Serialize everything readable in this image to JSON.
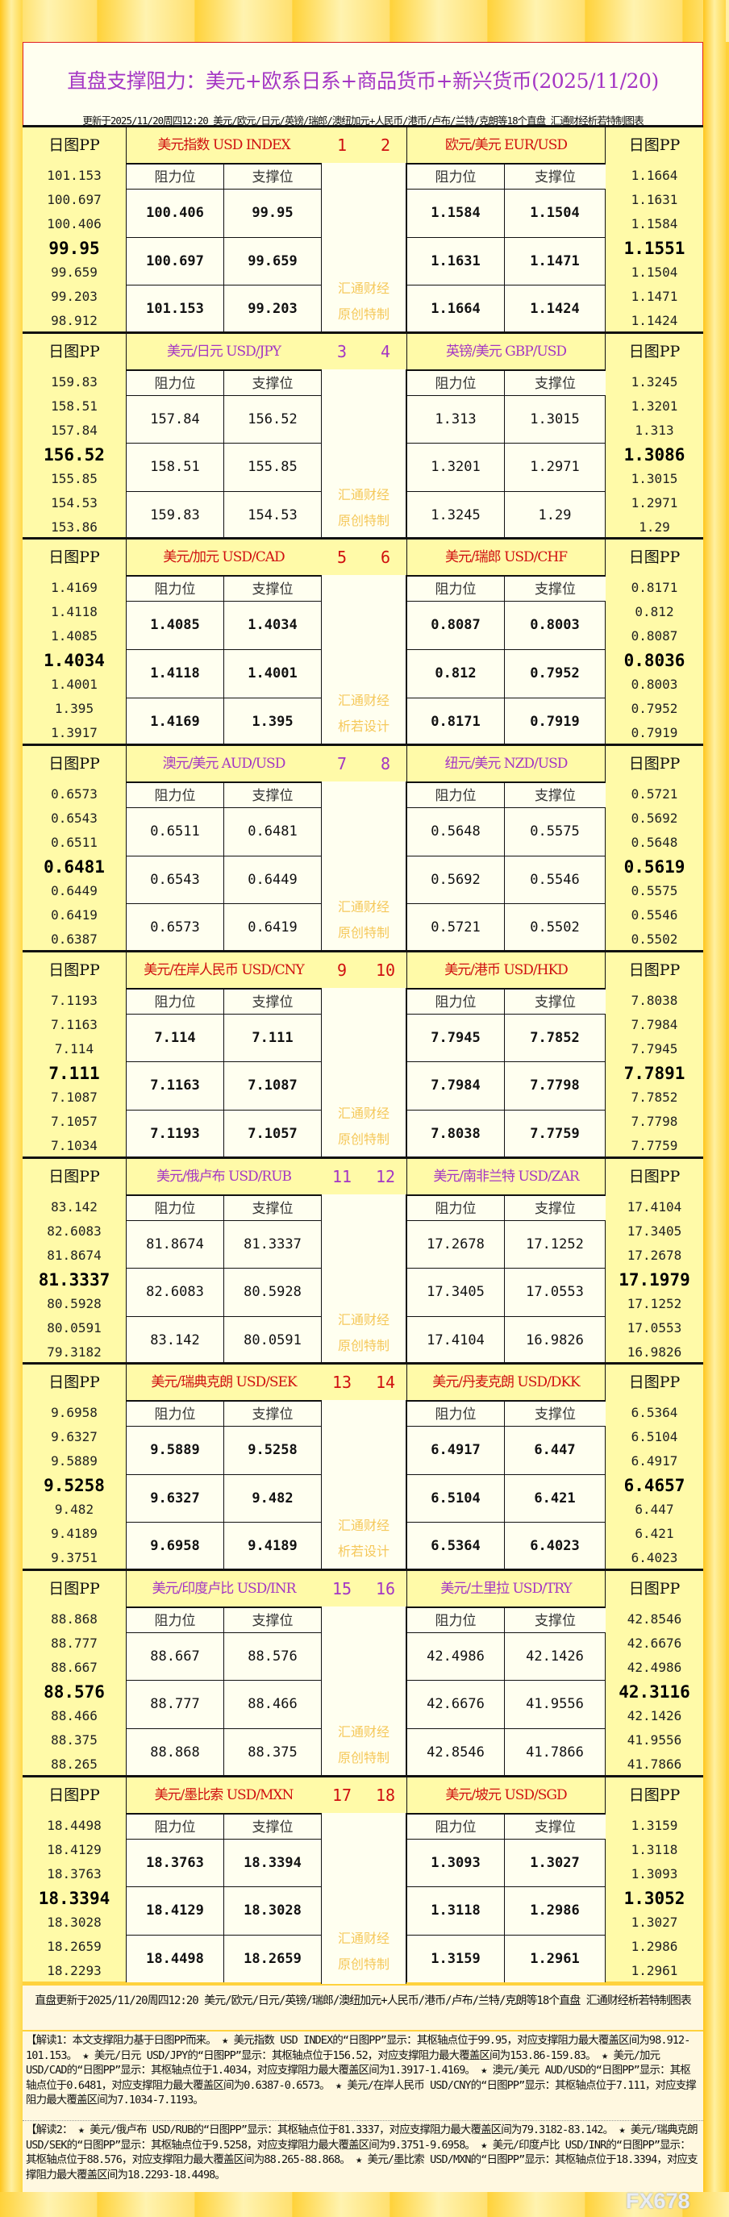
{
  "header": {
    "title": "直盘支撑阻力：美元+欧系日系+商品货币+新兴货币(2025/11/20)",
    "subtitle": "更新于2025/11/20周四12:20 美元/欧元/日元/英镑/瑞郎/澳纽加元+人民币/港币/卢布/兰特/克朗等18个直盘 汇通财经析若特制图表"
  },
  "labels": {
    "pp": "日图PP",
    "resistance": "阻力位",
    "support": "支撑位"
  },
  "colors": {
    "purple": "#a436c4",
    "red": "#d01010",
    "frame": "#ffd23c",
    "pp_bg": "#fffaa8"
  },
  "blocks": [
    {
      "nums": [
        "1",
        "2"
      ],
      "color": "red",
      "wm": [
        "汇通财经",
        "原创特制"
      ],
      "left": {
        "name": "美元指数 USD INDEX",
        "pp": [
          "101.153",
          "100.697",
          "100.406",
          "99.95",
          "99.659",
          "99.203",
          "98.912"
        ],
        "rows": [
          [
            "100.406",
            "99.95"
          ],
          [
            "100.697",
            "99.659"
          ],
          [
            "101.153",
            "99.203"
          ]
        ]
      },
      "right": {
        "name": "欧元/美元 EUR/USD",
        "pp": [
          "1.1664",
          "1.1631",
          "1.1584",
          "1.1551",
          "1.1504",
          "1.1471",
          "1.1424"
        ],
        "rows": [
          [
            "1.1584",
            "1.1504"
          ],
          [
            "1.1631",
            "1.1471"
          ],
          [
            "1.1664",
            "1.1424"
          ]
        ]
      }
    },
    {
      "nums": [
        "3",
        "4"
      ],
      "color": "purple",
      "wm": [
        "汇通财经",
        "原创特制"
      ],
      "left": {
        "name": "美元/日元 USD/JPY",
        "pp": [
          "159.83",
          "158.51",
          "157.84",
          "156.52",
          "155.85",
          "154.53",
          "153.86"
        ],
        "rows": [
          [
            "157.84",
            "156.52"
          ],
          [
            "158.51",
            "155.85"
          ],
          [
            "159.83",
            "154.53"
          ]
        ]
      },
      "right": {
        "name": "英镑/美元 GBP/USD",
        "pp": [
          "1.3245",
          "1.3201",
          "1.313",
          "1.3086",
          "1.3015",
          "1.2971",
          "1.29"
        ],
        "rows": [
          [
            "1.313",
            "1.3015"
          ],
          [
            "1.3201",
            "1.2971"
          ],
          [
            "1.3245",
            "1.29"
          ]
        ]
      }
    },
    {
      "nums": [
        "5",
        "6"
      ],
      "color": "red",
      "wm": [
        "汇通财经",
        "析若设计"
      ],
      "left": {
        "name": "美元/加元 USD/CAD",
        "pp": [
          "1.4169",
          "1.4118",
          "1.4085",
          "1.4034",
          "1.4001",
          "1.395",
          "1.3917"
        ],
        "rows": [
          [
            "1.4085",
            "1.4034"
          ],
          [
            "1.4118",
            "1.4001"
          ],
          [
            "1.4169",
            "1.395"
          ]
        ]
      },
      "right": {
        "name": "美元/瑞郎 USD/CHF",
        "pp": [
          "0.8171",
          "0.812",
          "0.8087",
          "0.8036",
          "0.8003",
          "0.7952",
          "0.7919"
        ],
        "rows": [
          [
            "0.8087",
            "0.8003"
          ],
          [
            "0.812",
            "0.7952"
          ],
          [
            "0.8171",
            "0.7919"
          ]
        ]
      }
    },
    {
      "nums": [
        "7",
        "8"
      ],
      "color": "purple",
      "wm": [
        "汇通财经",
        "原创特制"
      ],
      "left": {
        "name": "澳元/美元 AUD/USD",
        "pp": [
          "0.6573",
          "0.6543",
          "0.6511",
          "0.6481",
          "0.6449",
          "0.6419",
          "0.6387"
        ],
        "rows": [
          [
            "0.6511",
            "0.6481"
          ],
          [
            "0.6543",
            "0.6449"
          ],
          [
            "0.6573",
            "0.6419"
          ]
        ]
      },
      "right": {
        "name": "纽元/美元 NZD/USD",
        "pp": [
          "0.5721",
          "0.5692",
          "0.5648",
          "0.5619",
          "0.5575",
          "0.5546",
          "0.5502"
        ],
        "rows": [
          [
            "0.5648",
            "0.5575"
          ],
          [
            "0.5692",
            "0.5546"
          ],
          [
            "0.5721",
            "0.5502"
          ]
        ]
      }
    },
    {
      "nums": [
        "9",
        "10"
      ],
      "color": "red",
      "wm": [
        "汇通财经",
        "原创特制"
      ],
      "left": {
        "name": "美元/在岸人民币 USD/CNY",
        "pp": [
          "7.1193",
          "7.1163",
          "7.114",
          "7.111",
          "7.1087",
          "7.1057",
          "7.1034"
        ],
        "rows": [
          [
            "7.114",
            "7.111"
          ],
          [
            "7.1163",
            "7.1087"
          ],
          [
            "7.1193",
            "7.1057"
          ]
        ]
      },
      "right": {
        "name": "美元/港币 USD/HKD",
        "pp": [
          "7.8038",
          "7.7984",
          "7.7945",
          "7.7891",
          "7.7852",
          "7.7798",
          "7.7759"
        ],
        "rows": [
          [
            "7.7945",
            "7.7852"
          ],
          [
            "7.7984",
            "7.7798"
          ],
          [
            "7.8038",
            "7.7759"
          ]
        ]
      }
    },
    {
      "nums": [
        "11",
        "12"
      ],
      "color": "purple",
      "wm": [
        "汇通财经",
        "原创特制"
      ],
      "left": {
        "name": "美元/俄卢布 USD/RUB",
        "pp": [
          "83.142",
          "82.6083",
          "81.8674",
          "81.3337",
          "80.5928",
          "80.0591",
          "79.3182"
        ],
        "rows": [
          [
            "81.8674",
            "81.3337"
          ],
          [
            "82.6083",
            "80.5928"
          ],
          [
            "83.142",
            "80.0591"
          ]
        ]
      },
      "right": {
        "name": "美元/南非兰特 USD/ZAR",
        "pp": [
          "17.4104",
          "17.3405",
          "17.2678",
          "17.1979",
          "17.1252",
          "17.0553",
          "16.9826"
        ],
        "rows": [
          [
            "17.2678",
            "17.1252"
          ],
          [
            "17.3405",
            "17.0553"
          ],
          [
            "17.4104",
            "16.9826"
          ]
        ]
      }
    },
    {
      "nums": [
        "13",
        "14"
      ],
      "color": "red",
      "wm": [
        "汇通财经",
        "析若设计"
      ],
      "left": {
        "name": "美元/瑞典克朗 USD/SEK",
        "pp": [
          "9.6958",
          "9.6327",
          "9.5889",
          "9.5258",
          "9.482",
          "9.4189",
          "9.3751"
        ],
        "rows": [
          [
            "9.5889",
            "9.5258"
          ],
          [
            "9.6327",
            "9.482"
          ],
          [
            "9.6958",
            "9.4189"
          ]
        ]
      },
      "right": {
        "name": "美元/丹麦克朗 USD/DKK",
        "pp": [
          "6.5364",
          "6.5104",
          "6.4917",
          "6.4657",
          "6.447",
          "6.421",
          "6.4023"
        ],
        "rows": [
          [
            "6.4917",
            "6.447"
          ],
          [
            "6.5104",
            "6.421"
          ],
          [
            "6.5364",
            "6.4023"
          ]
        ]
      }
    },
    {
      "nums": [
        "15",
        "16"
      ],
      "color": "purple",
      "wm": [
        "汇通财经",
        "原创特制"
      ],
      "left": {
        "name": "美元/印度卢比 USD/INR",
        "pp": [
          "88.868",
          "88.777",
          "88.667",
          "88.576",
          "88.466",
          "88.375",
          "88.265"
        ],
        "rows": [
          [
            "88.667",
            "88.576"
          ],
          [
            "88.777",
            "88.466"
          ],
          [
            "88.868",
            "88.375"
          ]
        ]
      },
      "right": {
        "name": "美元/土里拉 USD/TRY",
        "pp": [
          "42.8546",
          "42.6676",
          "42.4986",
          "42.3116",
          "42.1426",
          "41.9556",
          "41.7866"
        ],
        "rows": [
          [
            "42.4986",
            "42.1426"
          ],
          [
            "42.6676",
            "41.9556"
          ],
          [
            "42.8546",
            "41.7866"
          ]
        ]
      }
    },
    {
      "nums": [
        "17",
        "18"
      ],
      "color": "red",
      "wm": [
        "汇通财经",
        "原创特制"
      ],
      "left": {
        "name": "美元/墨比索 USD/MXN",
        "pp": [
          "18.4498",
          "18.4129",
          "18.3763",
          "18.3394",
          "18.3028",
          "18.2659",
          "18.2293"
        ],
        "rows": [
          [
            "18.3763",
            "18.3394"
          ],
          [
            "18.4129",
            "18.3028"
          ],
          [
            "18.4498",
            "18.2659"
          ]
        ]
      },
      "right": {
        "name": "美元/坡元 USD/SGD",
        "pp": [
          "1.3159",
          "1.3118",
          "1.3093",
          "1.3052",
          "1.3027",
          "1.2986",
          "1.2961"
        ],
        "rows": [
          [
            "1.3093",
            "1.3027"
          ],
          [
            "1.3118",
            "1.2986"
          ],
          [
            "1.3159",
            "1.2961"
          ]
        ]
      }
    }
  ],
  "footer": {
    "update": "直盘更新于2025/11/20周四12:20 美元/欧元/日元/英镑/瑞郎/澳纽加元+人民币/港币/卢布/兰特/克朗等18个直盘 汇通财经析若特制图表",
    "interp1": "【解读1：本文支撑阻力基于日图PP而来。 ★ 美元指数 USD INDEX的“日图PP”显示：其枢轴点位于99.95，对应支撑阻力最大覆盖区间为98.912-101.153。 ★ 美元/日元 USD/JPY的“日图PP”显示：其枢轴点位于156.52，对应支撑阻力最大覆盖区间为153.86-159.83。 ★ 美元/加元 USD/CAD的“日图PP”显示：其枢轴点位于1.4034，对应支撑阻力最大覆盖区间为1.3917-1.4169。 ★ 澳元/美元 AUD/USD的“日图PP”显示：其枢轴点位于0.6481，对应支撑阻力最大覆盖区间为0.6387-0.6573。 ★ 美元/在岸人民币 USD/CNY的“日图PP”显示：其枢轴点位于7.111，对应支撑阻力最大覆盖区间为7.1034-7.1193。",
    "interp2": "【解读2： ★ 美元/俄卢布 USD/RUB的“日图PP”显示：其枢轴点位于81.3337，对应支撑阻力最大覆盖区间为79.3182-83.142。 ★ 美元/瑞典克朗 USD/SEK的“日图PP”显示：其枢轴点位于9.5258，对应支撑阻力最大覆盖区间为9.3751-9.6958。 ★ 美元/印度卢比 USD/INR的“日图PP”显示：其枢轴点位于88.576，对应支撑阻力最大覆盖区间为88.265-88.868。 ★ 美元/墨比索 USD/MXN的“日图PP”显示：其枢轴点位于18.3394，对应支撑阻力最大覆盖区间为18.2293-18.4498。",
    "watermark": "FX678"
  }
}
